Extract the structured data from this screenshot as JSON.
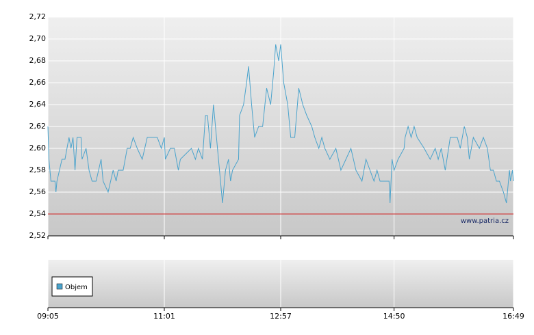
{
  "chart_data": {
    "type": "line",
    "color": "#4aa3cc",
    "x": [
      545,
      546,
      548,
      552,
      553,
      554,
      559,
      562,
      566,
      568,
      570,
      572,
      574,
      578,
      579,
      583,
      586,
      589,
      593,
      598,
      600,
      605,
      610,
      613,
      615,
      620,
      624,
      627,
      630,
      634,
      639,
      644,
      654,
      658,
      661,
      662,
      667,
      671,
      675,
      677,
      688,
      692,
      695,
      699,
      702,
      704,
      707,
      710,
      714,
      717,
      719,
      722,
      725,
      727,
      729,
      735,
      736,
      740,
      743,
      745,
      748,
      751,
      755,
      759,
      763,
      767,
      770,
      772,
      775,
      777,
      780,
      784,
      787,
      791,
      795,
      799,
      803,
      808,
      811,
      815,
      818,
      821,
      826,
      832,
      837,
      842,
      847,
      852,
      858,
      862,
      866,
      870,
      873,
      876,
      885,
      886,
      888,
      890,
      894,
      900,
      901,
      904,
      907,
      910,
      913,
      920,
      926,
      931,
      934,
      937,
      941,
      946,
      953,
      956,
      960,
      963,
      965,
      969,
      975,
      979,
      983,
      986,
      989,
      992,
      995,
      999,
      1002,
      1005,
      1006,
      1008,
      1009
    ],
    "values": [
      2.62,
      2.59,
      2.57,
      2.57,
      2.56,
      2.57,
      2.59,
      2.59,
      2.61,
      2.6,
      2.61,
      2.58,
      2.61,
      2.61,
      2.59,
      2.6,
      2.58,
      2.57,
      2.57,
      2.59,
      2.57,
      2.56,
      2.58,
      2.57,
      2.58,
      2.58,
      2.6,
      2.6,
      2.61,
      2.6,
      2.59,
      2.61,
      2.61,
      2.6,
      2.61,
      2.59,
      2.6,
      2.6,
      2.58,
      2.59,
      2.6,
      2.59,
      2.6,
      2.59,
      2.63,
      2.63,
      2.6,
      2.64,
      2.6,
      2.57,
      2.55,
      2.58,
      2.59,
      2.57,
      2.58,
      2.59,
      2.63,
      2.64,
      2.66,
      2.675,
      2.64,
      2.61,
      2.62,
      2.62,
      2.655,
      2.64,
      2.67,
      2.695,
      2.68,
      2.695,
      2.66,
      2.64,
      2.61,
      2.61,
      2.655,
      2.64,
      2.63,
      2.62,
      2.61,
      2.6,
      2.61,
      2.6,
      2.59,
      2.6,
      2.58,
      2.59,
      2.6,
      2.58,
      2.57,
      2.59,
      2.58,
      2.57,
      2.58,
      2.57,
      2.57,
      2.55,
      2.59,
      2.58,
      2.59,
      2.6,
      2.61,
      2.62,
      2.61,
      2.62,
      2.61,
      2.6,
      2.59,
      2.6,
      2.59,
      2.6,
      2.58,
      2.61,
      2.61,
      2.6,
      2.62,
      2.61,
      2.59,
      2.61,
      2.6,
      2.61,
      2.6,
      2.58,
      2.58,
      2.57,
      2.57,
      2.56,
      2.55,
      2.58,
      2.57,
      2.58,
      2.57
    ],
    "xlim": [
      545,
      1009
    ],
    "xticks": [
      {
        "value": 545,
        "label": "09:05"
      },
      {
        "value": 661,
        "label": "11:01"
      },
      {
        "value": 777,
        "label": "12:57"
      },
      {
        "value": 890,
        "label": "14:50"
      },
      {
        "value": 1009,
        "label": "16:49"
      }
    ],
    "ylim": [
      2.52,
      2.72
    ],
    "yticks": [
      {
        "value": 2.52,
        "label": "2,52"
      },
      {
        "value": 2.54,
        "label": "2,54"
      },
      {
        "value": 2.56,
        "label": "2,56"
      },
      {
        "value": 2.58,
        "label": "2,58"
      },
      {
        "value": 2.6,
        "label": "2,60"
      },
      {
        "value": 2.62,
        "label": "2,62"
      },
      {
        "value": 2.64,
        "label": "2,64"
      },
      {
        "value": 2.66,
        "label": "2,66"
      },
      {
        "value": 2.68,
        "label": "2,68"
      },
      {
        "value": 2.7,
        "label": "2,70"
      },
      {
        "value": 2.72,
        "label": "2,72"
      }
    ],
    "grid": true,
    "reference_line": {
      "value": 2.54,
      "color": "#d02020"
    },
    "watermark": "www.patria.cz",
    "volume_legend": {
      "label": "Objem",
      "color": "#4aa3cc"
    }
  }
}
